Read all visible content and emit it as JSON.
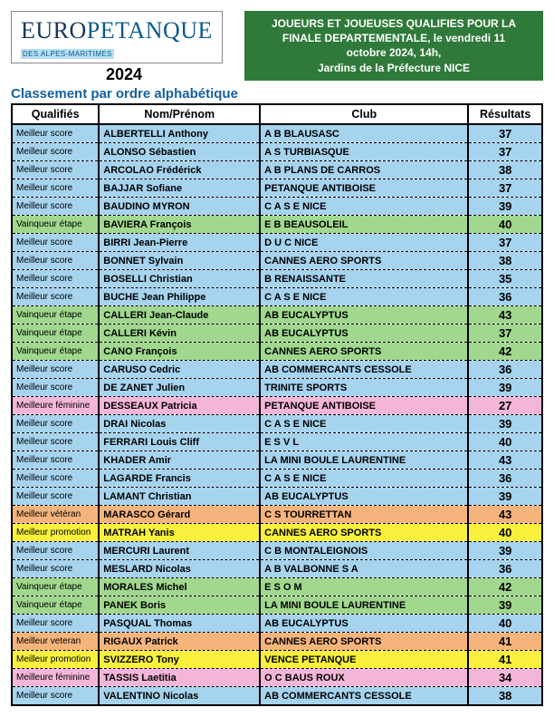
{
  "logo": {
    "part1": "EURO",
    "part2": "PETANQUE",
    "subtitle": "DES ALPES-MARITIMES"
  },
  "year": "2024",
  "banner": {
    "line1": "JOUEURS ET JOUEUSES QUALIFIES POUR LA",
    "line2": "FINALE DEPARTEMENTALE, le vendredi 11",
    "line3": "octobre 2024, 14h,",
    "line4": "Jardins de la Préfecture NICE"
  },
  "subtitle": "Classement par ordre alphabétique",
  "colors": {
    "meilleur_score": "#a6d3ee",
    "vainqueur_etape": "#a0d88e",
    "meilleure_feminine": "#f4b6d8",
    "meilleur_veteran": "#f5b47c",
    "meilleur_promotion": "#f8f03c"
  },
  "table": {
    "headers": {
      "qualifies": "Qualifiés",
      "nom": "Nom/Prénom",
      "club": "Club",
      "resultats": "Résultats"
    },
    "rows": [
      {
        "cat": "meilleur_score",
        "q": "Meilleur score",
        "nom": "ALBERTELLI Anthony",
        "club": "A B BLAUSASC",
        "res": "37"
      },
      {
        "cat": "meilleur_score",
        "q": "Meilleur score",
        "nom": "ALONSO Sébastien",
        "club": "A S TURBIASQUE",
        "res": "37"
      },
      {
        "cat": "meilleur_score",
        "q": "Meilleur score",
        "nom": "ARCOLAO Frédérick",
        "club": "A B  PLANS DE CARROS",
        "res": "38"
      },
      {
        "cat": "meilleur_score",
        "q": "Meilleur score",
        "nom": "BAJJAR Sofiane",
        "club": "PETANQUE ANTIBOISE",
        "res": "37"
      },
      {
        "cat": "meilleur_score",
        "q": "Meilleur score",
        "nom": "BAUDINO MYRON",
        "club": "C A S E   NICE",
        "res": "39"
      },
      {
        "cat": "vainqueur_etape",
        "q": "Vainqueur étape",
        "nom": "BAVIERA François",
        "club": "E B BEAUSOLEIL",
        "res": "40"
      },
      {
        "cat": "meilleur_score",
        "q": "Meilleur score",
        "nom": "BIRRI Jean-Pierre",
        "club": "D U C   NICE",
        "res": "37"
      },
      {
        "cat": "meilleur_score",
        "q": "Meilleur score",
        "nom": "BONNET Sylvain",
        "club": "CANNES AERO SPORTS",
        "res": "38"
      },
      {
        "cat": "meilleur_score",
        "q": "Meilleur score",
        "nom": "BOSELLI Christian",
        "club": "B  RENAISSANTE",
        "res": "35"
      },
      {
        "cat": "meilleur_score",
        "q": "Meilleur score",
        "nom": "BUCHE Jean Philippe",
        "club": "C A S E   NICE",
        "res": "36"
      },
      {
        "cat": "vainqueur_etape",
        "q": "Vainqueur étape",
        "nom": "CALLERI Jean-Claude",
        "club": "AB EUCALYPTUS",
        "res": "43"
      },
      {
        "cat": "vainqueur_etape",
        "q": "Vainqueur étape",
        "nom": "CALLERI Kévin",
        "club": "AB EUCALYPTUS",
        "res": "37"
      },
      {
        "cat": "vainqueur_etape",
        "q": "Vainqueur étape",
        "nom": "CANO François",
        "club": "CANNES AERO SPORTS",
        "res": "42"
      },
      {
        "cat": "meilleur_score",
        "q": "Meilleur score",
        "nom": "CARUSO Cedric",
        "club": "AB COMMERCANTS CESSOLE",
        "res": "36"
      },
      {
        "cat": "meilleur_score",
        "q": "Meilleur score",
        "nom": "DE ZANET Julien",
        "club": "TRINITE SPORTS",
        "res": "39"
      },
      {
        "cat": "meilleure_feminine",
        "q": "Meilleure féminine",
        "nom": "DESSEAUX Patricia",
        "club": "PETANQUE ANTIBOISE",
        "res": "27"
      },
      {
        "cat": "meilleur_score",
        "q": "Meilleur score",
        "nom": "DRAI Nicolas",
        "club": "C A S E   NICE",
        "res": "39"
      },
      {
        "cat": "meilleur_score",
        "q": "Meilleur score",
        "nom": "FERRARI Louis Cliff",
        "club": "E S V L",
        "res": "40"
      },
      {
        "cat": "meilleur_score",
        "q": "Meilleur score",
        "nom": "KHADER Amir",
        "club": "LA MINI BOULE LAURENTINE",
        "res": "43"
      },
      {
        "cat": "meilleur_score",
        "q": "Meilleur score",
        "nom": "LAGARDE Francis",
        "club": "C A S E   NICE",
        "res": "36"
      },
      {
        "cat": "meilleur_score",
        "q": "Meilleur score",
        "nom": "LAMANT Christian",
        "club": "AB EUCALYPTUS",
        "res": "39"
      },
      {
        "cat": "meilleur_veteran",
        "q": "Meilleur vétéran",
        "nom": "MARASCO Gérard",
        "club": "C S TOURRETTAN",
        "res": "43"
      },
      {
        "cat": "meilleur_promotion",
        "q": "Meilleur promotion",
        "nom": "MATRAH Yanis",
        "club": "CANNES AERO SPORTS",
        "res": "40"
      },
      {
        "cat": "meilleur_score",
        "q": "Meilleur score",
        "nom": "MERCURI Laurent",
        "club": "C B MONTALEIGNOIS",
        "res": "39"
      },
      {
        "cat": "meilleur_score",
        "q": "Meilleur score",
        "nom": "MESLARD Nicolas",
        "club": "A B VALBONNE S A",
        "res": "36"
      },
      {
        "cat": "vainqueur_etape",
        "q": "Vainqueur étape",
        "nom": "MORALES Michel",
        "club": "E S O M",
        "res": "42"
      },
      {
        "cat": "vainqueur_etape",
        "q": "Vainqueur étape",
        "nom": "PANEK Boris",
        "club": "LA MINI BOULE LAURENTINE",
        "res": "39"
      },
      {
        "cat": "meilleur_score",
        "q": "Meilleur score",
        "nom": "PASQUAL Thomas",
        "club": "AB EUCALYPTUS",
        "res": "40"
      },
      {
        "cat": "meilleur_veteran",
        "q": "Meilleur veteran",
        "nom": "RIGAUX Patrick",
        "club": "CANNES AERO SPORTS",
        "res": "41"
      },
      {
        "cat": "meilleur_promotion",
        "q": "Meilleur promotion",
        "nom": "SVIZZERO Tony",
        "club": "VENCE PETANQUE",
        "res": "41"
      },
      {
        "cat": "meilleure_feminine",
        "q": "Meilleure féminine",
        "nom": "TASSIS Laetitia",
        "club": "O C BAUS ROUX",
        "res": "34"
      },
      {
        "cat": "meilleur_score",
        "q": "Meilleur score",
        "nom": "VALENTINO Nicolas",
        "club": "AB COMMERCANTS CESSOLE",
        "res": "38"
      }
    ]
  }
}
